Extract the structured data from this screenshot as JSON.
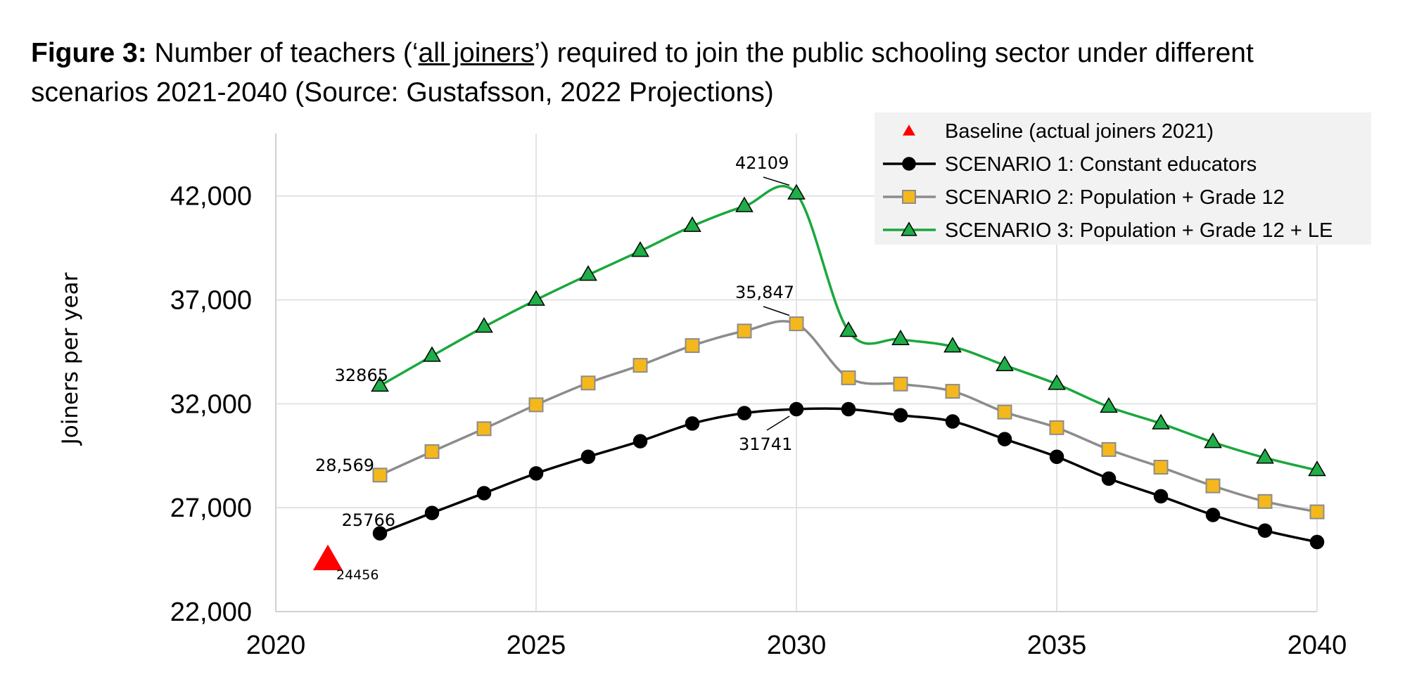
{
  "title": {
    "label": "Figure 3:",
    "pre": " Number of teachers (‘",
    "underlined": "all joiners",
    "post": "’) required to join the public schooling sector under different scenarios 2021-2040  (Source: Gustafsson, 2022 Projections)"
  },
  "chart_data": {
    "type": "line",
    "xlabel": "",
    "ylabel": "Joiners per year",
    "xlim": [
      2020,
      2040
    ],
    "ylim": [
      22000,
      45000
    ],
    "xticks": [
      "2020",
      "2025",
      "2030",
      "2035",
      "2040"
    ],
    "yticks": [
      "22,000",
      "27,000",
      "32,000",
      "37,000",
      "42,000"
    ],
    "grid": true,
    "legend_position": "top-right",
    "series": [
      {
        "name": "Baseline (actual joiners 2021)",
        "color": "#ff0000",
        "marker": "triangle",
        "line": false,
        "x": [
          2021
        ],
        "y": [
          24456
        ]
      },
      {
        "name": "SCENARIO 1: Constant educators",
        "color": "#000000",
        "marker_fill": "#000000",
        "marker": "circle",
        "line": true,
        "x": [
          2022,
          2023,
          2024,
          2025,
          2026,
          2027,
          2028,
          2029,
          2030,
          2031,
          2032,
          2033,
          2034,
          2035,
          2036,
          2037,
          2038,
          2039,
          2040
        ],
        "y": [
          25766,
          26750,
          27700,
          28650,
          29450,
          30200,
          31050,
          31550,
          31741,
          31741,
          31450,
          31150,
          30300,
          29450,
          28400,
          27550,
          26650,
          25900,
          25350
        ]
      },
      {
        "name": "SCENARIO 2: Population + Grade 12",
        "color": "#8c8c8c",
        "marker_fill": "#f5b81c",
        "marker": "square",
        "line": true,
        "x": [
          2022,
          2023,
          2024,
          2025,
          2026,
          2027,
          2028,
          2029,
          2030,
          2031,
          2032,
          2033,
          2034,
          2035,
          2036,
          2037,
          2038,
          2039,
          2040
        ],
        "y": [
          28569,
          29700,
          30800,
          31950,
          33000,
          33850,
          34800,
          35500,
          35847,
          33250,
          32950,
          32600,
          31600,
          30850,
          29800,
          28950,
          28050,
          27300,
          26800
        ]
      },
      {
        "name": "SCENARIO 3: Population + Grade 12 + LE",
        "color": "#19a83c",
        "marker_fill": "#1fae48",
        "marker": "triangle",
        "line": true,
        "x": [
          2022,
          2023,
          2024,
          2025,
          2026,
          2027,
          2028,
          2029,
          2030,
          2031,
          2032,
          2033,
          2034,
          2035,
          2036,
          2037,
          2038,
          2039,
          2040
        ],
        "y": [
          32865,
          34300,
          35700,
          37000,
          38200,
          39350,
          40550,
          41500,
          42109,
          35500,
          35100,
          34750,
          33850,
          32950,
          31850,
          31050,
          30150,
          29400,
          28800
        ]
      }
    ],
    "annotations": [
      {
        "text": "42109"
      },
      {
        "text": "35,847"
      },
      {
        "text": "31741"
      },
      {
        "text": "32865"
      },
      {
        "text": "28,569"
      },
      {
        "text": "25766"
      },
      {
        "text": "24456"
      }
    ]
  }
}
